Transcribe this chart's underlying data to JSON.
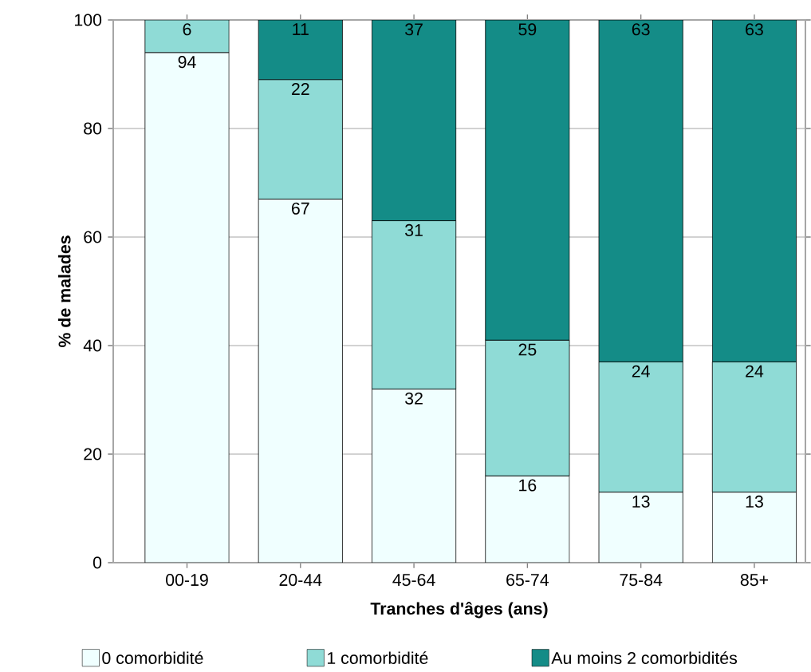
{
  "chart_data": {
    "type": "bar",
    "stacked": true,
    "data_labels": true,
    "xlabel": "Tranches d'âges (ans)",
    "ylabel": "% de malades",
    "categories": [
      "00-19",
      "20-44",
      "45-64",
      "65-74",
      "75-84",
      "85+"
    ],
    "series": [
      {
        "name": "0 comorbidité",
        "color": "#f0ffff",
        "values": [
          94,
          67,
          32,
          16,
          13,
          13
        ]
      },
      {
        "name": "1 comorbidité",
        "color": "#8fdbd6",
        "values": [
          6,
          22,
          31,
          25,
          24,
          24
        ]
      },
      {
        "name": "Au moins 2 comorbidités",
        "color": "#148c87",
        "values": [
          null,
          11,
          37,
          59,
          63,
          63
        ]
      }
    ],
    "ylim": [
      0,
      100
    ],
    "yticks": [
      0,
      20,
      40,
      60,
      80,
      100
    ],
    "grid": "y",
    "legend": "bottom"
  }
}
